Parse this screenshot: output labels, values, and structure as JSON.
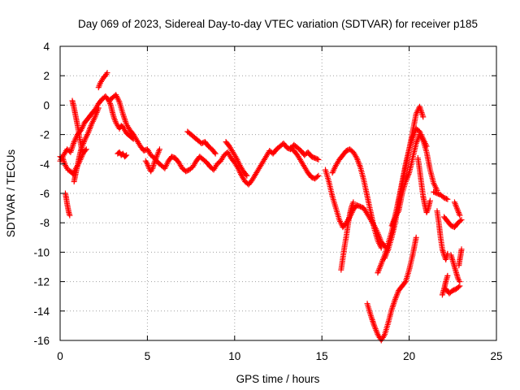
{
  "colors": {
    "series": "#ff0000",
    "frame": "#000000",
    "grid": "#a0a0a0"
  },
  "chart_data": {
    "type": "scatter",
    "title": "Day 069 of 2023, Sidereal Day-to-day VTEC variation (SDTVAR) for receiver p185",
    "xlabel": "GPS time / hours",
    "ylabel": "SDTVAR / TECUs",
    "xlim": [
      0,
      25
    ],
    "ylim": [
      -16,
      4
    ],
    "xticks": [
      0,
      5,
      10,
      15,
      20,
      25
    ],
    "xtick_labels": [
      "0",
      "5",
      "10",
      "15",
      "20",
      "25"
    ],
    "yticks": [
      4,
      2,
      0,
      -2,
      -4,
      -6,
      -8,
      -10,
      -12,
      -14,
      -16
    ],
    "ytick_labels": [
      "4",
      "2",
      "0",
      "-2",
      "-4",
      "-6",
      "-8",
      "-10",
      "-12",
      "-14",
      "-16"
    ],
    "grid": true,
    "marker": "+",
    "series": [
      {
        "name": "SDTVAR",
        "segments": [
          {
            "x": [
              0.0,
              0.2,
              0.4,
              0.6,
              0.8,
              1.0,
              1.2,
              1.4,
              1.6,
              1.8,
              2.0,
              2.2,
              2.4,
              2.6,
              2.8,
              3.0,
              3.2,
              3.4,
              3.6,
              3.8,
              4.0,
              4.2,
              4.4,
              4.6,
              4.8,
              5.0,
              5.2,
              5.4,
              5.6,
              5.8,
              6.0,
              6.2,
              6.4,
              6.6,
              6.8,
              7.0,
              7.2,
              7.4,
              7.6,
              7.8,
              8.0,
              8.2,
              8.4,
              8.6,
              8.8,
              9.0,
              9.2,
              9.4,
              9.6,
              9.8,
              10.0,
              10.2,
              10.4,
              10.6,
              10.8,
              11.0,
              11.2,
              11.4,
              11.6,
              11.8,
              12.0,
              12.2,
              12.4,
              12.6,
              12.8,
              13.0,
              13.2,
              13.4,
              13.6,
              13.8,
              14.0,
              14.2,
              14.4,
              14.6,
              14.8
            ],
            "y": [
              -3.8,
              -3.4,
              -3.0,
              -3.2,
              -2.5,
              -2.0,
              -1.7,
              -1.2,
              -0.9,
              -0.6,
              -0.3,
              0.1,
              0.4,
              0.6,
              0.3,
              0.5,
              0.7,
              0.2,
              -0.6,
              -1.3,
              -1.7,
              -2.0,
              -2.4,
              -2.8,
              -3.1,
              -3.0,
              -3.4,
              -3.6,
              -3.9,
              -4.1,
              -4.3,
              -3.8,
              -3.5,
              -3.6,
              -3.9,
              -4.3,
              -4.5,
              -4.4,
              -4.2,
              -3.8,
              -3.5,
              -3.7,
              -3.9,
              -4.2,
              -4.4,
              -4.0,
              -3.8,
              -3.4,
              -3.2,
              -3.6,
              -3.9,
              -4.3,
              -4.8,
              -5.2,
              -5.4,
              -5.1,
              -4.7,
              -4.3,
              -3.9,
              -3.5,
              -3.1,
              -3.3,
              -3.0,
              -2.8,
              -2.6,
              -2.9,
              -3.0,
              -2.7,
              -2.9,
              -3.1,
              -3.4,
              -3.2,
              -3.5,
              -3.6,
              -3.7
            ]
          },
          {
            "x": [
              0.0,
              0.15,
              0.3,
              0.45,
              0.6,
              0.75,
              0.9,
              1.05,
              1.2,
              1.35,
              1.5
            ],
            "y": [
              -3.5,
              -3.6,
              -4.1,
              -4.4,
              -4.5,
              -4.7,
              -4.3,
              -4.0,
              -3.6,
              -3.2,
              -3.0
            ]
          },
          {
            "x": [
              0.3,
              0.35,
              0.4,
              0.45,
              0.5,
              0.55
            ],
            "y": [
              -6.0,
              -6.3,
              -6.7,
              -7.0,
              -7.3,
              -7.5
            ]
          },
          {
            "x": [
              0.7,
              0.8,
              0.9,
              1.0,
              1.1,
              1.2,
              1.3
            ],
            "y": [
              0.3,
              -0.2,
              -0.8,
              -1.4,
              -2.1,
              -2.8,
              -3.3
            ]
          },
          {
            "x": [
              0.8,
              0.9,
              1.0,
              1.1,
              1.2,
              1.4,
              1.6,
              1.8,
              2.0,
              2.2
            ],
            "y": [
              -5.2,
              -4.6,
              -4.1,
              -3.5,
              -3.0,
              -2.4,
              -1.9,
              -1.3,
              -0.8,
              -0.2
            ]
          },
          {
            "x": [
              2.2,
              2.3,
              2.4,
              2.5,
              2.6,
              2.7
            ],
            "y": [
              1.2,
              1.5,
              1.7,
              1.9,
              2.0,
              2.2
            ]
          },
          {
            "x": [
              2.8,
              2.9,
              3.0,
              3.1,
              3.2,
              3.3,
              3.4,
              3.5,
              3.6,
              3.7,
              3.8,
              3.9,
              4.0,
              4.1,
              4.2
            ],
            "y": [
              0.3,
              0.0,
              -0.5,
              -0.9,
              -1.2,
              -1.4,
              -1.6,
              -1.4,
              -1.5,
              -1.7,
              -1.9,
              -2.0,
              -2.1,
              -2.2,
              -2.3
            ]
          },
          {
            "x": [
              3.3,
              3.4,
              3.5,
              3.6,
              3.7,
              3.8
            ],
            "y": [
              -3.3,
              -3.2,
              -3.4,
              -3.3,
              -3.5,
              -3.4
            ]
          },
          {
            "x": [
              4.9,
              5.0,
              5.1,
              5.2,
              5.3,
              5.4,
              5.5,
              5.6,
              5.7
            ],
            "y": [
              -3.8,
              -4.0,
              -4.3,
              -4.5,
              -4.3,
              -3.9,
              -3.6,
              -3.3,
              -3.0
            ]
          },
          {
            "x": [
              7.3,
              7.5,
              7.7,
              7.9,
              8.1,
              8.3,
              8.5,
              8.7,
              8.9
            ],
            "y": [
              -1.8,
              -2.0,
              -2.2,
              -2.4,
              -2.6,
              -2.5,
              -2.8,
              -3.0,
              -3.3
            ]
          },
          {
            "x": [
              9.5,
              9.7,
              9.9,
              10.1,
              10.3,
              10.5,
              10.7
            ],
            "y": [
              -2.5,
              -2.8,
              -3.2,
              -3.6,
              -4.1,
              -4.5,
              -4.8
            ]
          },
          {
            "x": [
              13.2,
              13.4,
              13.6,
              13.8,
              14.0,
              14.2,
              14.4,
              14.6,
              14.8
            ],
            "y": [
              -2.9,
              -3.1,
              -3.4,
              -3.8,
              -4.2,
              -4.6,
              -4.9,
              -5.0,
              -4.8
            ]
          },
          {
            "x": [
              15.2,
              15.4,
              15.6,
              15.8,
              16.0,
              16.2,
              16.4,
              16.6,
              16.8,
              17.0,
              17.2,
              17.4,
              17.6,
              17.8,
              18.0,
              18.2,
              18.4,
              18.6,
              18.8
            ],
            "y": [
              -4.4,
              -5.2,
              -6.2,
              -7.0,
              -7.8,
              -8.3,
              -8.0,
              -7.6,
              -7.1,
              -6.8,
              -6.9,
              -7.0,
              -7.4,
              -7.8,
              -8.2,
              -8.7,
              -9.3,
              -9.6,
              -9.8
            ]
          },
          {
            "x": [
              16.1,
              16.2,
              16.3,
              16.4,
              16.5,
              16.6,
              16.7,
              16.8
            ],
            "y": [
              -11.2,
              -10.4,
              -9.6,
              -8.9,
              -8.1,
              -7.4,
              -6.9,
              -6.6
            ]
          },
          {
            "x": [
              15.6,
              15.8,
              16.0,
              16.2,
              16.4,
              16.6,
              16.8,
              17.0,
              17.2,
              17.4,
              17.6,
              17.8,
              18.0,
              18.2,
              18.4
            ],
            "y": [
              -4.6,
              -4.1,
              -3.7,
              -3.4,
              -3.1,
              -3.0,
              -3.2,
              -3.6,
              -4.2,
              -5.1,
              -6.2,
              -7.3,
              -8.4,
              -9.2,
              -9.7
            ]
          },
          {
            "x": [
              17.6,
              17.8,
              18.0,
              18.2,
              18.4,
              18.6,
              18.8,
              19.0,
              19.2,
              19.4,
              19.6,
              19.8,
              20.0,
              20.2,
              20.4
            ],
            "y": [
              -13.5,
              -14.3,
              -15.0,
              -15.6,
              -16.0,
              -15.6,
              -14.8,
              -13.9,
              -13.2,
              -12.6,
              -12.3,
              -12.0,
              -11.2,
              -10.2,
              -9.0
            ]
          },
          {
            "x": [
              18.2,
              18.4,
              18.6,
              18.8,
              19.0,
              19.2,
              19.4,
              19.6,
              19.8,
              20.0,
              20.2,
              20.4,
              20.6,
              20.8
            ],
            "y": [
              -11.4,
              -10.8,
              -10.2,
              -9.4,
              -8.6,
              -7.5,
              -6.4,
              -5.2,
              -4.0,
              -3.0,
              -1.8,
              -0.6,
              -0.1,
              -0.8
            ]
          },
          {
            "x": [
              18.6,
              18.8,
              19.0,
              19.2,
              19.4,
              19.6,
              19.8,
              20.0,
              20.2,
              20.4,
              20.6,
              20.8,
              21.0
            ],
            "y": [
              -10.4,
              -9.8,
              -9.0,
              -8.0,
              -6.6,
              -5.4,
              -4.2,
              -3.0,
              -2.2,
              -1.6,
              -1.8,
              -2.3,
              -2.8
            ]
          },
          {
            "x": [
              19.0,
              19.2,
              19.4,
              19.6,
              19.8,
              20.0,
              20.2,
              20.4,
              20.6,
              20.8,
              21.0,
              21.2,
              21.4,
              21.6
            ],
            "y": [
              -8.2,
              -7.6,
              -7.2,
              -6.0,
              -5.2,
              -4.6,
              -3.6,
              -2.6,
              -2.0,
              -2.4,
              -3.2,
              -4.4,
              -5.3,
              -5.8
            ]
          },
          {
            "x": [
              20.5,
              20.6,
              20.7,
              20.8,
              20.9,
              21.0,
              21.1,
              21.2
            ],
            "y": [
              -3.6,
              -4.4,
              -5.3,
              -6.2,
              -6.8,
              -7.3,
              -7.0,
              -6.5
            ]
          },
          {
            "x": [
              21.4,
              21.6,
              21.8,
              22.0,
              22.2
            ],
            "y": [
              -5.9,
              -6.0,
              -6.1,
              -6.3,
              -6.4
            ]
          },
          {
            "x": [
              21.6,
              21.7,
              21.8,
              21.9,
              22.0,
              22.1,
              22.2
            ],
            "y": [
              -7.2,
              -8.0,
              -9.0,
              -9.8,
              -10.2,
              -10.5,
              -10.1
            ]
          },
          {
            "x": [
              22.0,
              22.2,
              22.4,
              22.6,
              22.8,
              23.0
            ],
            "y": [
              -7.6,
              -7.9,
              -8.2,
              -8.3,
              -8.0,
              -7.8
            ]
          },
          {
            "x": [
              22.4,
              22.5,
              22.6,
              22.7,
              22.8,
              22.9
            ],
            "y": [
              -10.2,
              -10.6,
              -11.0,
              -11.4,
              -11.8,
              -12.0
            ]
          },
          {
            "x": [
              22.1,
              22.3,
              22.5,
              22.7,
              22.9
            ],
            "y": [
              -12.5,
              -12.8,
              -12.6,
              -12.5,
              -12.3
            ]
          },
          {
            "x": [
              21.9,
              22.0,
              22.1,
              22.2
            ],
            "y": [
              -12.9,
              -12.5,
              -12.0,
              -11.6
            ]
          },
          {
            "x": [
              22.6,
              22.7,
              22.8,
              22.9
            ],
            "y": [
              -6.6,
              -6.9,
              -7.2,
              -7.5
            ]
          },
          {
            "x": [
              22.85,
              22.9,
              22.95,
              23.0
            ],
            "y": [
              -10.9,
              -10.5,
              -10.2,
              -9.8
            ]
          }
        ]
      }
    ]
  }
}
